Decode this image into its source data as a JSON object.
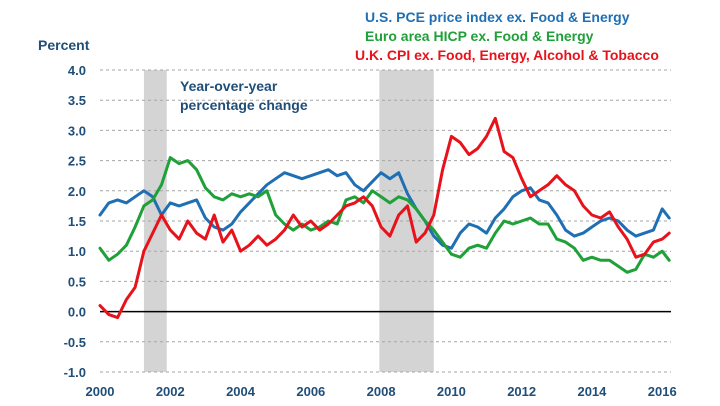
{
  "chart_data": {
    "type": "line",
    "title": "",
    "ylabel": "Percent",
    "xlabel": "",
    "xlim": [
      2000,
      2016.25
    ],
    "ylim": [
      -1.0,
      4.0
    ],
    "grid": true,
    "x_ticks": [
      "2000",
      "2002",
      "2004",
      "2006",
      "2008",
      "2010",
      "2012",
      "2014",
      "2016"
    ],
    "y_ticks": [
      "4.0",
      "3.5",
      "3.0",
      "2.5",
      "2.0",
      "1.5",
      "1.0",
      "0.5",
      "0.0",
      "-0.5",
      "-1.0"
    ],
    "legend_position": "top-right",
    "annotation": [
      "Year-over-year",
      "percentage change"
    ],
    "recession_periods": [
      [
        2001.25,
        2001.9
      ],
      [
        2007.95,
        2009.5
      ]
    ],
    "series": [
      {
        "name": "U.S. PCE price index ex. Food & Energy",
        "color": "#1f6fb4",
        "x": [
          2000.0,
          2000.25,
          2000.5,
          2000.75,
          2001.0,
          2001.25,
          2001.5,
          2001.75,
          2002.0,
          2002.25,
          2002.5,
          2002.75,
          2003.0,
          2003.25,
          2003.5,
          2003.75,
          2004.0,
          2004.25,
          2004.5,
          2004.75,
          2005.0,
          2005.25,
          2005.5,
          2005.75,
          2006.0,
          2006.25,
          2006.5,
          2006.75,
          2007.0,
          2007.25,
          2007.5,
          2007.75,
          2008.0,
          2008.25,
          2008.5,
          2008.75,
          2009.0,
          2009.25,
          2009.5,
          2009.75,
          2010.0,
          2010.25,
          2010.5,
          2010.75,
          2011.0,
          2011.25,
          2011.5,
          2011.75,
          2012.0,
          2012.25,
          2012.5,
          2012.75,
          2013.0,
          2013.25,
          2013.5,
          2013.75,
          2014.0,
          2014.25,
          2014.5,
          2014.75,
          2015.0,
          2015.25,
          2015.5,
          2015.75,
          2016.0,
          2016.2
        ],
        "values": [
          1.6,
          1.8,
          1.85,
          1.8,
          1.9,
          2.0,
          1.9,
          1.6,
          1.8,
          1.75,
          1.8,
          1.85,
          1.55,
          1.4,
          1.35,
          1.45,
          1.65,
          1.8,
          1.95,
          2.1,
          2.2,
          2.3,
          2.25,
          2.2,
          2.25,
          2.3,
          2.35,
          2.25,
          2.3,
          2.1,
          2.0,
          2.15,
          2.3,
          2.2,
          2.3,
          1.95,
          1.7,
          1.5,
          1.25,
          1.1,
          1.05,
          1.3,
          1.45,
          1.4,
          1.3,
          1.55,
          1.7,
          1.9,
          2.0,
          2.05,
          1.85,
          1.8,
          1.6,
          1.35,
          1.25,
          1.3,
          1.4,
          1.5,
          1.55,
          1.5,
          1.35,
          1.25,
          1.3,
          1.35,
          1.7,
          1.55
        ]
      },
      {
        "name": "Euro area HICP ex. Food & Energy",
        "color": "#1fa038",
        "x": [
          2000.0,
          2000.25,
          2000.5,
          2000.75,
          2001.0,
          2001.25,
          2001.5,
          2001.75,
          2002.0,
          2002.25,
          2002.5,
          2002.75,
          2003.0,
          2003.25,
          2003.5,
          2003.75,
          2004.0,
          2004.25,
          2004.5,
          2004.75,
          2005.0,
          2005.25,
          2005.5,
          2005.75,
          2006.0,
          2006.25,
          2006.5,
          2006.75,
          2007.0,
          2007.25,
          2007.5,
          2007.75,
          2008.0,
          2008.25,
          2008.5,
          2008.75,
          2009.0,
          2009.25,
          2009.5,
          2009.75,
          2010.0,
          2010.25,
          2010.5,
          2010.75,
          2011.0,
          2011.25,
          2011.5,
          2011.75,
          2012.0,
          2012.25,
          2012.5,
          2012.75,
          2013.0,
          2013.25,
          2013.5,
          2013.75,
          2014.0,
          2014.25,
          2014.5,
          2014.75,
          2015.0,
          2015.25,
          2015.5,
          2015.75,
          2016.0,
          2016.2
        ],
        "values": [
          1.05,
          0.85,
          0.95,
          1.1,
          1.4,
          1.75,
          1.85,
          2.1,
          2.55,
          2.45,
          2.5,
          2.35,
          2.05,
          1.9,
          1.85,
          1.95,
          1.9,
          1.95,
          1.9,
          2.0,
          1.6,
          1.45,
          1.35,
          1.45,
          1.35,
          1.4,
          1.5,
          1.45,
          1.85,
          1.9,
          1.8,
          2.0,
          1.9,
          1.8,
          1.9,
          1.85,
          1.7,
          1.5,
          1.35,
          1.15,
          0.95,
          0.9,
          1.05,
          1.1,
          1.05,
          1.3,
          1.5,
          1.45,
          1.5,
          1.55,
          1.45,
          1.45,
          1.2,
          1.15,
          1.05,
          0.85,
          0.9,
          0.85,
          0.85,
          0.75,
          0.65,
          0.7,
          0.95,
          0.9,
          1.0,
          0.85
        ]
      },
      {
        "name": "U.K. CPI ex. Food, Energy, Alcohol & Tobacco",
        "color": "#e8121b",
        "x": [
          2000.0,
          2000.25,
          2000.5,
          2000.75,
          2001.0,
          2001.25,
          2001.5,
          2001.75,
          2002.0,
          2002.25,
          2002.5,
          2002.75,
          2003.0,
          2003.25,
          2003.5,
          2003.75,
          2004.0,
          2004.25,
          2004.5,
          2004.75,
          2005.0,
          2005.25,
          2005.5,
          2005.75,
          2006.0,
          2006.25,
          2006.5,
          2006.75,
          2007.0,
          2007.25,
          2007.5,
          2007.75,
          2008.0,
          2008.25,
          2008.5,
          2008.75,
          2009.0,
          2009.25,
          2009.5,
          2009.75,
          2010.0,
          2010.25,
          2010.5,
          2010.75,
          2011.0,
          2011.25,
          2011.5,
          2011.75,
          2012.0,
          2012.25,
          2012.5,
          2012.75,
          2013.0,
          2013.25,
          2013.5,
          2013.75,
          2014.0,
          2014.25,
          2014.5,
          2014.75,
          2015.0,
          2015.25,
          2015.5,
          2015.75,
          2016.0,
          2016.2
        ],
        "values": [
          0.1,
          -0.05,
          -0.1,
          0.2,
          0.4,
          1.0,
          1.3,
          1.6,
          1.35,
          1.2,
          1.5,
          1.3,
          1.2,
          1.6,
          1.15,
          1.35,
          1.0,
          1.1,
          1.25,
          1.1,
          1.2,
          1.35,
          1.6,
          1.4,
          1.5,
          1.35,
          1.45,
          1.6,
          1.75,
          1.8,
          1.9,
          1.75,
          1.4,
          1.25,
          1.6,
          1.75,
          1.15,
          1.3,
          1.6,
          2.35,
          2.9,
          2.8,
          2.6,
          2.7,
          2.9,
          3.2,
          2.65,
          2.55,
          2.2,
          1.9,
          2.0,
          2.1,
          2.25,
          2.1,
          2.0,
          1.75,
          1.6,
          1.55,
          1.65,
          1.4,
          1.2,
          0.9,
          0.95,
          1.15,
          1.2,
          1.3
        ]
      }
    ]
  }
}
